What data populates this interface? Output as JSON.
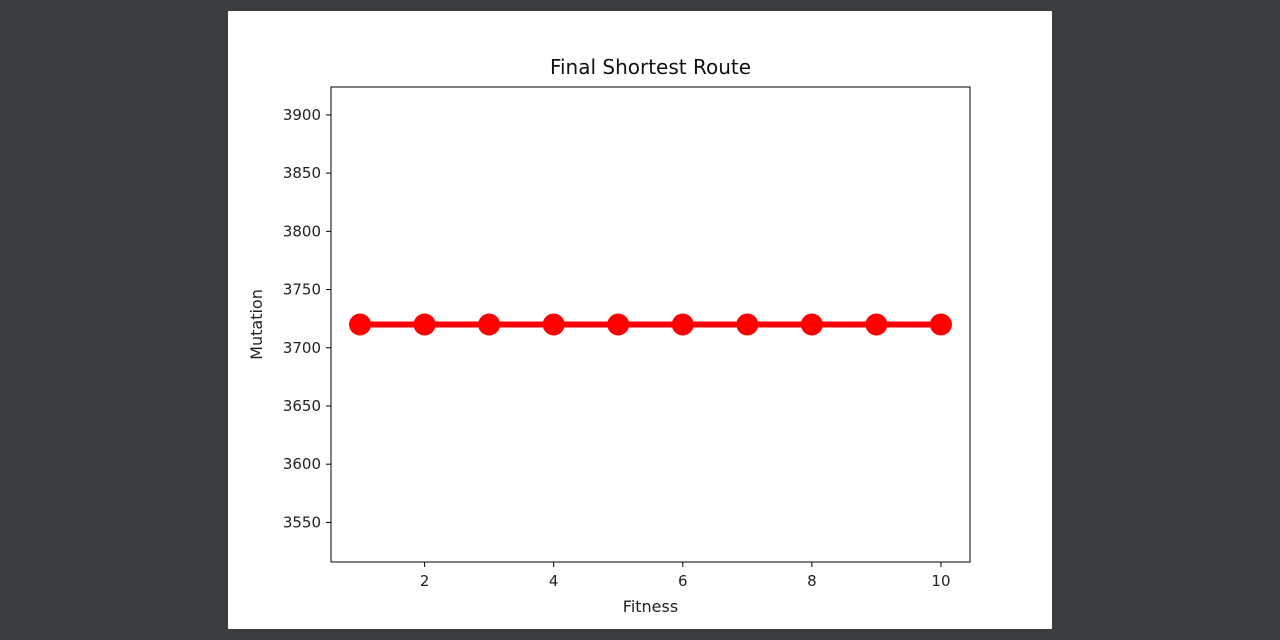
{
  "chart_data": {
    "type": "line",
    "title": "Final Shortest Route",
    "xlabel": "Fitness",
    "ylabel": "Mutation",
    "x": [
      1,
      2,
      3,
      4,
      5,
      6,
      7,
      8,
      9,
      10
    ],
    "series": [
      {
        "values": [
          3720,
          3720,
          3720,
          3720,
          3720,
          3720,
          3720,
          3720,
          3720,
          3720
        ]
      }
    ],
    "xlim": [
      0.55,
      10.45
    ],
    "ylim": [
      3516,
      3924
    ],
    "xticks": [
      2,
      4,
      6,
      8,
      10
    ],
    "yticks": [
      3550,
      3600,
      3650,
      3700,
      3750,
      3800,
      3850,
      3900
    ],
    "line_color": "#ff0000",
    "marker": "circle",
    "grid": false,
    "legend": "none"
  }
}
